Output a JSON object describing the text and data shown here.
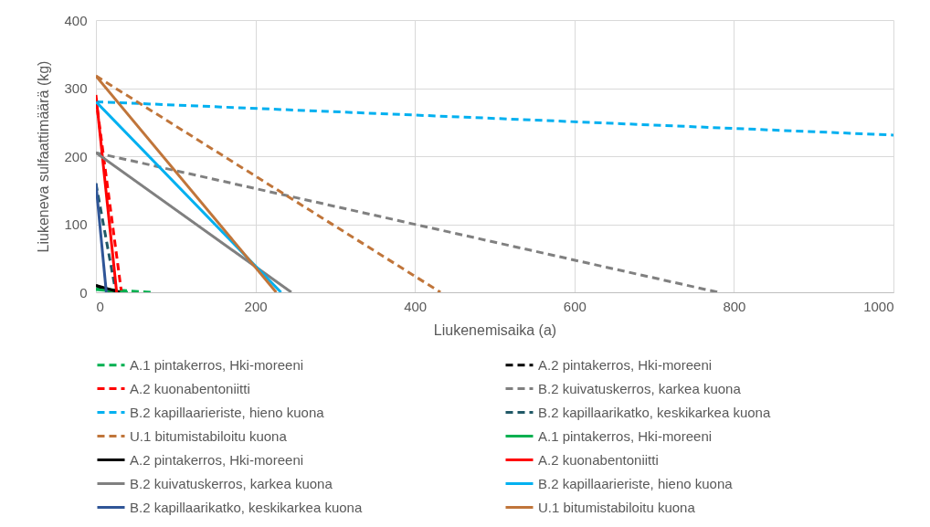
{
  "chart_data": {
    "type": "line",
    "xlabel": "Liukenemisaika (a)",
    "ylabel": "Liukeneva sulfaattimäärä (kg)",
    "xlim": [
      0,
      1000
    ],
    "ylim": [
      0,
      400
    ],
    "xticks": [
      0,
      200,
      400,
      600,
      800,
      1000
    ],
    "yticks": [
      0,
      100,
      200,
      300,
      400
    ],
    "grid": true,
    "legend": "bottom",
    "series": [
      {
        "name": "A.1 pintakerros, Hki-moreeni",
        "color": "#00b050",
        "line_style": "dashed",
        "x": [
          0,
          70
        ],
        "values": [
          5,
          0
        ]
      },
      {
        "name": "A.2 pintakerros, Hki-moreeni",
        "color": "#000000",
        "line_style": "dashed",
        "x": [
          0,
          20
        ],
        "values": [
          10,
          0
        ]
      },
      {
        "name": "A.2 kuonabentoniitti",
        "color": "#ff0000",
        "line_style": "dashed",
        "x": [
          0,
          32
        ],
        "values": [
          285,
          0
        ]
      },
      {
        "name": "B.2 kuivatuskerros, karkea kuona",
        "color": "#808080",
        "line_style": "dashed",
        "x": [
          0,
          780
        ],
        "values": [
          205,
          0
        ]
      },
      {
        "name": "B.2 kapillaarieriste, hieno kuona",
        "color": "#00b0f0",
        "line_style": "dashed",
        "x": [
          0,
          1000
        ],
        "values": [
          280,
          231
        ]
      },
      {
        "name": "B.2 kapillaarikatko, keskikarkea kuona",
        "color": "#215967",
        "line_style": "dashed",
        "x": [
          0,
          25
        ],
        "values": [
          160,
          0
        ]
      },
      {
        "name": "U.1 bitumistabiloitu kuona",
        "color": "#c0753a",
        "line_style": "dashed",
        "x": [
          0,
          432
        ],
        "values": [
          318,
          0
        ]
      },
      {
        "name": "A.1 pintakerros, Hki-moreeni",
        "color": "#00b050",
        "line_style": "solid",
        "x": [
          0,
          40
        ],
        "values": [
          4,
          0
        ]
      },
      {
        "name": "A.2 pintakerros, Hki-moreeni",
        "color": "#000000",
        "line_style": "solid",
        "x": [
          0,
          30
        ],
        "values": [
          10,
          0
        ]
      },
      {
        "name": "A.2 kuonabentoniitti",
        "color": "#ff0000",
        "line_style": "solid",
        "x": [
          0,
          26
        ],
        "values": [
          290,
          0
        ]
      },
      {
        "name": "B.2 kuivatuskerros, karkea kuona",
        "color": "#808080",
        "line_style": "solid",
        "x": [
          0,
          245
        ],
        "values": [
          205,
          0
        ]
      },
      {
        "name": "B.2 kapillaarieriste, hieno kuona",
        "color": "#00b0f0",
        "line_style": "solid",
        "x": [
          0,
          232
        ],
        "values": [
          280,
          0
        ]
      },
      {
        "name": "B.2 kapillaarikatko, keskikarkea kuona",
        "color": "#2f5597",
        "line_style": "solid",
        "x": [
          0,
          13
        ],
        "values": [
          160,
          0
        ]
      },
      {
        "name": "U.1 bitumistabiloitu kuona",
        "color": "#c0753a",
        "line_style": "solid",
        "x": [
          0,
          226
        ],
        "values": [
          318,
          0
        ]
      }
    ]
  }
}
